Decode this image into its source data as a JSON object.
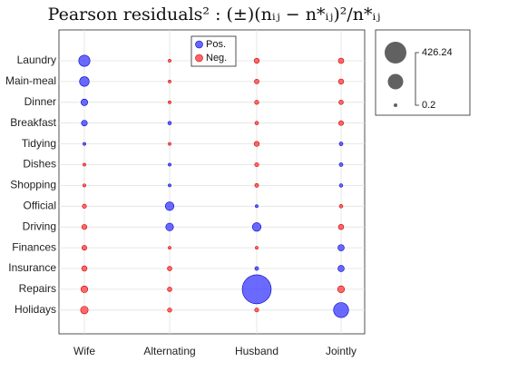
{
  "chart_data": {
    "type": "scatter",
    "title": "Pearson residuals² : (±)(nᵢⱼ − n*ᵢⱼ)²/n*ᵢⱼ",
    "xlabel": "",
    "ylabel": "",
    "grid": true,
    "legend_placement": "top-inside",
    "columns": [
      "Wife",
      "Alternating",
      "Husband",
      "Jointly"
    ],
    "rows": [
      "Laundry",
      "Main-meal",
      "Dinner",
      "Breakfast",
      "Tidying",
      "Dishes",
      "Shopping",
      "Official",
      "Driving",
      "Finances",
      "Insurance",
      "Repairs",
      "Holidays"
    ],
    "legend": [
      {
        "name": "Pos.",
        "color": "#4040ff"
      },
      {
        "name": "Neg.",
        "color": "#ff4040"
      }
    ],
    "size_legend": {
      "max_label": "426.24",
      "min_label": "0.2",
      "max": 426.24,
      "min": 0.2
    },
    "values": [
      [
        64.0,
        -3.5,
        -13.0,
        -15.0
      ],
      [
        47.0,
        -2.5,
        -11.0,
        -14.0
      ],
      [
        22.0,
        -2.5,
        -9.0,
        -10.0
      ],
      [
        17.0,
        6.0,
        -6.5,
        -12.0
      ],
      [
        3.5,
        -4.0,
        -13.0,
        7.0
      ],
      [
        -4.0,
        3.0,
        -8.5,
        7.0
      ],
      [
        -4.5,
        3.5,
        -7.5,
        6.0
      ],
      [
        -8.5,
        38.0,
        2.5,
        -6.5
      ],
      [
        -13.0,
        30.0,
        38.0,
        -14.0
      ],
      [
        -12.0,
        -3.0,
        -3.5,
        20.0
      ],
      [
        -14.0,
        -10.0,
        7.0,
        20.0
      ],
      [
        -23.0,
        -10.0,
        426.24,
        -24.0
      ],
      [
        -29.0,
        -9.0,
        -8.0,
        115.0
      ]
    ]
  }
}
